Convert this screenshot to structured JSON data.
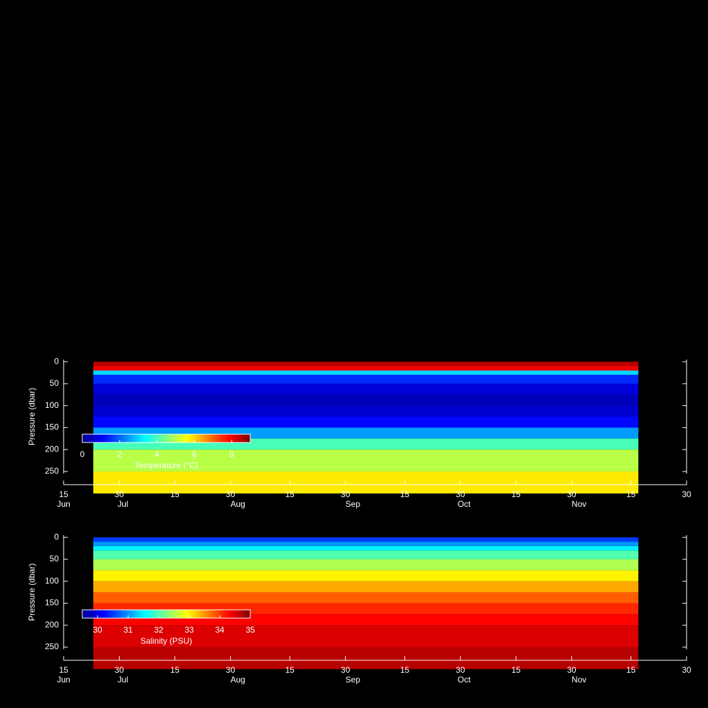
{
  "chart_data": [
    {
      "type": "heatmap",
      "y_label": "Pressure (dbar)",
      "xlim": [
        166,
        334
      ],
      "xticks": [
        {
          "value": 166,
          "label": "15"
        },
        {
          "value": 181,
          "label": "30"
        },
        {
          "value": 196,
          "label": "15"
        },
        {
          "value": 211,
          "label": "30"
        },
        {
          "value": 227,
          "label": "15"
        },
        {
          "value": 242,
          "label": "30"
        },
        {
          "value": 258,
          "label": "15"
        },
        {
          "value": 273,
          "label": "30"
        },
        {
          "value": 288,
          "label": "15"
        },
        {
          "value": 303,
          "label": "30"
        },
        {
          "value": 319,
          "label": "15"
        },
        {
          "value": 334,
          "label": "30"
        }
      ],
      "month_labels": [
        {
          "value": 166,
          "label": "Jun"
        },
        {
          "value": 182,
          "label": "Jul"
        },
        {
          "value": 213,
          "label": "Aug"
        },
        {
          "value": 244,
          "label": "Sep"
        },
        {
          "value": 274,
          "label": "Oct"
        },
        {
          "value": 305,
          "label": "Nov"
        }
      ],
      "ylim": [
        -5,
        280
      ],
      "yticks": [
        0,
        50,
        100,
        150,
        200,
        250
      ],
      "time_range": [
        174,
        321
      ],
      "depths": [
        0,
        10,
        20,
        30,
        50,
        75,
        100,
        125,
        150,
        175,
        200,
        250,
        300
      ],
      "values": [
        8.5,
        8,
        3,
        1.5,
        0.8,
        0.5,
        0.7,
        1.2,
        2.5,
        4,
        5,
        5.8,
        6
      ],
      "colorbar": {
        "label": "Temperature (°C)",
        "clim": [
          0,
          9
        ],
        "ticks": [
          0,
          2,
          4,
          6,
          8
        ]
      }
    },
    {
      "type": "heatmap",
      "y_label": "Pressure (dbar)",
      "xlim": [
        166,
        334
      ],
      "xticks": [
        {
          "value": 166,
          "label": "15"
        },
        {
          "value": 181,
          "label": "30"
        },
        {
          "value": 196,
          "label": "15"
        },
        {
          "value": 211,
          "label": "30"
        },
        {
          "value": 227,
          "label": "15"
        },
        {
          "value": 242,
          "label": "30"
        },
        {
          "value": 258,
          "label": "15"
        },
        {
          "value": 273,
          "label": "30"
        },
        {
          "value": 288,
          "label": "15"
        },
        {
          "value": 303,
          "label": "30"
        },
        {
          "value": 319,
          "label": "15"
        },
        {
          "value": 334,
          "label": "30"
        }
      ],
      "month_labels": [
        {
          "value": 166,
          "label": "Jun"
        },
        {
          "value": 182,
          "label": "Jul"
        },
        {
          "value": 213,
          "label": "Aug"
        },
        {
          "value": 244,
          "label": "Sep"
        },
        {
          "value": 274,
          "label": "Oct"
        },
        {
          "value": 305,
          "label": "Nov"
        }
      ],
      "ylim": [
        -5,
        280
      ],
      "yticks": [
        0,
        50,
        100,
        150,
        200,
        250
      ],
      "time_range": [
        174,
        321
      ],
      "depths": [
        0,
        10,
        20,
        30,
        50,
        75,
        100,
        125,
        150,
        175,
        200,
        250,
        300
      ],
      "values": [
        30.5,
        31,
        31.5,
        32,
        32.5,
        33,
        33.4,
        33.8,
        34.1,
        34.3,
        34.5,
        34.7,
        34.8
      ],
      "colorbar": {
        "label": "Salinity (PSU)",
        "clim": [
          29.5,
          35
        ],
        "ticks": [
          30,
          31,
          32,
          33,
          34,
          35
        ]
      }
    }
  ]
}
